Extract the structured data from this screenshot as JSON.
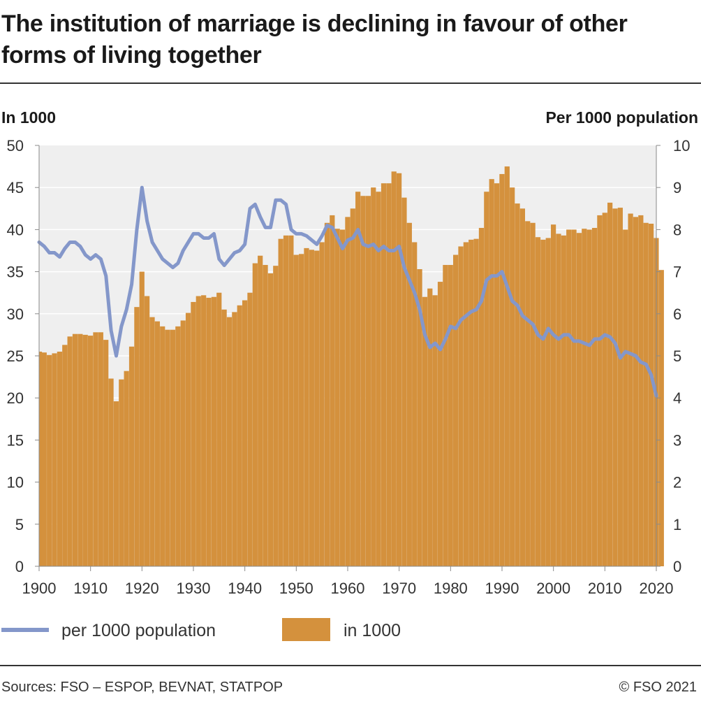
{
  "title": "The institution of marriage is declining in favour of other forms of living together",
  "footer": {
    "sources": "Sources: FSO – ESPOP, BEVNAT, STATPOP",
    "copyright": "© FSO 2021"
  },
  "colors": {
    "bar": "#D4913D",
    "line": "#8497CA",
    "plot_bg": "#EFEFEF",
    "grid": "#FFFFFF"
  },
  "chart_data": {
    "type": "bar+line",
    "title": "The institution of marriage is declining in favour of other forms of living together",
    "left_axis_label": "In 1000",
    "right_axis_label": "Per 1000 population",
    "left_ylim": [
      0,
      50
    ],
    "right_ylim": [
      0,
      10
    ],
    "left_ticks": [
      "0",
      "5",
      "10",
      "15",
      "20",
      "25",
      "30",
      "35",
      "40",
      "45",
      "50"
    ],
    "right_ticks": [
      "0",
      "1",
      "2",
      "3",
      "4",
      "5",
      "6",
      "7",
      "8",
      "9",
      "10"
    ],
    "x_ticks": [
      "1900",
      "1910",
      "1920",
      "1930",
      "1940",
      "1950",
      "1960",
      "1970",
      "1980",
      "1990",
      "2000",
      "2010",
      "2020"
    ],
    "years_start": 1900,
    "years_end": 2020,
    "series": [
      {
        "name": "in 1000",
        "type": "bar",
        "axis": "left",
        "values": [
          25.5,
          25.4,
          25.1,
          25.3,
          25.5,
          26.3,
          27.3,
          27.6,
          27.6,
          27.5,
          27.4,
          27.8,
          27.8,
          26.9,
          22.3,
          19.6,
          22.2,
          23.2,
          26.1,
          30.8,
          35.0,
          32.1,
          29.6,
          29.1,
          28.5,
          28.1,
          28.1,
          28.5,
          29.2,
          30.1,
          31.4,
          32.1,
          32.2,
          31.9,
          32.0,
          32.5,
          30.5,
          29.6,
          30.2,
          31.0,
          31.6,
          32.5,
          36.0,
          36.9,
          35.8,
          34.8,
          35.7,
          38.9,
          39.3,
          39.3,
          37.0,
          37.1,
          37.8,
          37.6,
          37.5,
          38.5,
          40.8,
          41.7,
          40.1,
          40.0,
          41.5,
          42.5,
          44.5,
          44.0,
          44.0,
          45.0,
          44.5,
          45.5,
          45.5,
          46.9,
          46.7,
          43.8,
          40.8,
          38.5,
          35.3,
          32.0,
          33.0,
          32.2,
          33.8,
          35.8,
          35.8,
          37.0,
          38.0,
          38.5,
          38.8,
          38.9,
          40.2,
          44.5,
          46.0,
          45.5,
          46.6,
          47.5,
          45.0,
          43.1,
          42.5,
          41.0,
          40.8,
          39.1,
          38.8,
          39.0,
          40.6,
          39.5,
          39.3,
          40.0,
          40.0,
          39.6,
          40.1,
          40.0,
          40.2,
          41.7,
          42.0,
          43.2,
          42.5,
          42.6,
          40.0,
          41.9,
          41.5,
          41.7,
          40.8,
          40.7,
          39.0,
          35.2
        ]
      },
      {
        "name": "per 1000 population",
        "type": "line",
        "axis": "right",
        "values": [
          7.7,
          7.6,
          7.45,
          7.45,
          7.35,
          7.55,
          7.7,
          7.7,
          7.6,
          7.4,
          7.3,
          7.4,
          7.3,
          6.9,
          5.6,
          5.0,
          5.7,
          6.1,
          6.7,
          8.0,
          9.0,
          8.2,
          7.7,
          7.5,
          7.3,
          7.2,
          7.1,
          7.2,
          7.5,
          7.7,
          7.9,
          7.9,
          7.8,
          7.8,
          7.9,
          7.3,
          7.15,
          7.3,
          7.45,
          7.5,
          7.65,
          8.5,
          8.6,
          8.3,
          8.05,
          8.05,
          8.7,
          8.7,
          8.6,
          8.0,
          7.9,
          7.9,
          7.85,
          7.75,
          7.65,
          7.85,
          8.1,
          8.05,
          7.8,
          7.55,
          7.75,
          7.8,
          8.0,
          7.65,
          7.6,
          7.65,
          7.5,
          7.6,
          7.5,
          7.5,
          7.6,
          7.1,
          6.8,
          6.5,
          6.1,
          5.5,
          5.2,
          5.3,
          5.15,
          5.4,
          5.7,
          5.65,
          5.85,
          5.95,
          6.05,
          6.1,
          6.3,
          6.8,
          6.9,
          6.9,
          7.0,
          6.65,
          6.3,
          6.2,
          5.95,
          5.85,
          5.75,
          5.5,
          5.4,
          5.65,
          5.5,
          5.4,
          5.5,
          5.5,
          5.35,
          5.35,
          5.3,
          5.25,
          5.4,
          5.4,
          5.5,
          5.45,
          5.3,
          4.95,
          5.1,
          5.05,
          5.0,
          4.85,
          4.8,
          4.55,
          4.05
        ]
      }
    ],
    "legend": [
      {
        "label": "per 1000 population",
        "kind": "line"
      },
      {
        "label": "in 1000",
        "kind": "bar"
      }
    ]
  }
}
